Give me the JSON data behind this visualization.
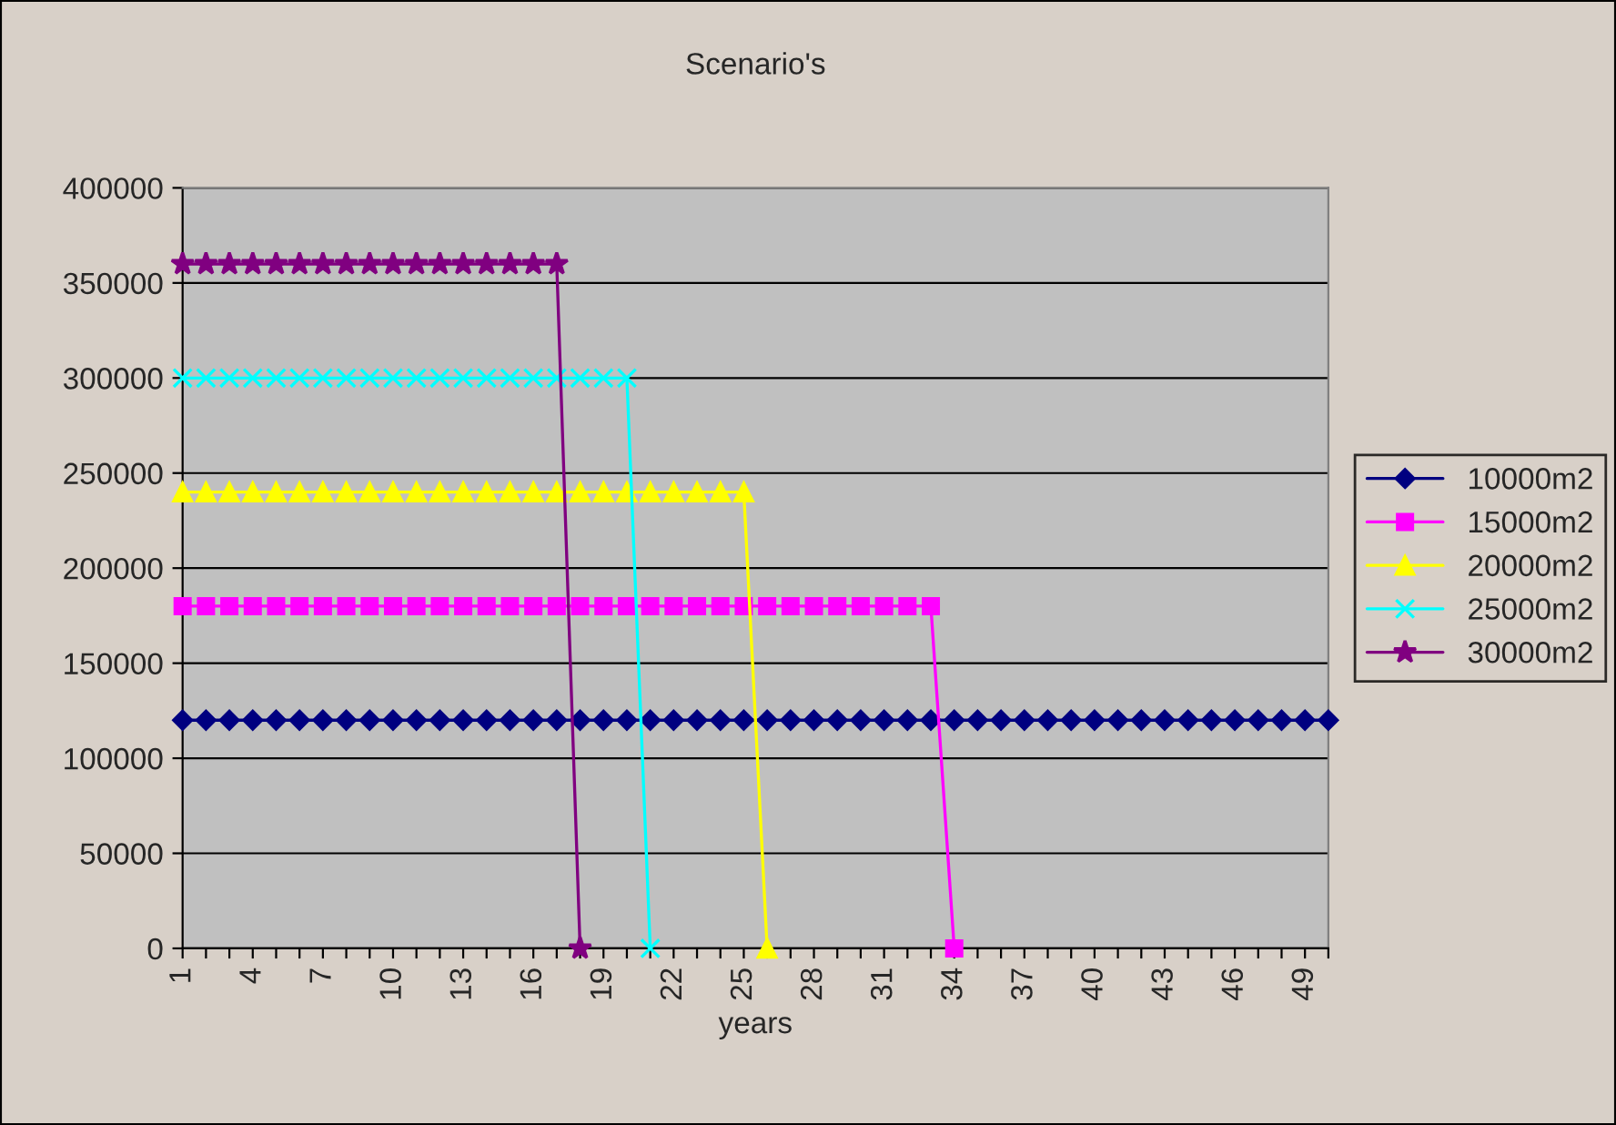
{
  "chart_data": {
    "type": "line",
    "title": "Scenario's",
    "xlabel": "years",
    "categories": [
      "1",
      null,
      null,
      "4",
      null,
      null,
      "7",
      null,
      null,
      "10",
      null,
      null,
      "13",
      null,
      null,
      "16",
      null,
      null,
      "19",
      null,
      null,
      "22",
      null,
      null,
      "25",
      null,
      null,
      "28",
      null,
      null,
      "31",
      null,
      null,
      "34",
      null,
      null,
      "37",
      null,
      null,
      "40",
      null,
      null,
      "43",
      null,
      null,
      "46",
      null,
      null,
      "49",
      null
    ],
    "series": [
      {
        "name": "10000m2",
        "color": "#000080",
        "marker": "diamond",
        "values": [
          120000,
          120000,
          120000,
          120000,
          120000,
          120000,
          120000,
          120000,
          120000,
          120000,
          120000,
          120000,
          120000,
          120000,
          120000,
          120000,
          120000,
          120000,
          120000,
          120000,
          120000,
          120000,
          120000,
          120000,
          120000,
          120000,
          120000,
          120000,
          120000,
          120000,
          120000,
          120000,
          120000,
          120000,
          120000,
          120000,
          120000,
          120000,
          120000,
          120000,
          120000,
          120000,
          120000,
          120000,
          120000,
          120000,
          120000,
          120000,
          120000,
          120000
        ]
      },
      {
        "name": "15000m2",
        "color": "#ff00ff",
        "marker": "square",
        "values": [
          180000,
          180000,
          180000,
          180000,
          180000,
          180000,
          180000,
          180000,
          180000,
          180000,
          180000,
          180000,
          180000,
          180000,
          180000,
          180000,
          180000,
          180000,
          180000,
          180000,
          180000,
          180000,
          180000,
          180000,
          180000,
          180000,
          180000,
          180000,
          180000,
          180000,
          180000,
          180000,
          180000,
          0,
          null,
          null,
          null,
          null,
          null,
          null,
          null,
          null,
          null,
          null,
          null,
          null,
          null,
          null,
          null,
          null
        ]
      },
      {
        "name": "20000m2",
        "color": "#ffff00",
        "marker": "triangle",
        "values": [
          240000,
          240000,
          240000,
          240000,
          240000,
          240000,
          240000,
          240000,
          240000,
          240000,
          240000,
          240000,
          240000,
          240000,
          240000,
          240000,
          240000,
          240000,
          240000,
          240000,
          240000,
          240000,
          240000,
          240000,
          240000,
          0,
          null,
          null,
          null,
          null,
          null,
          null,
          null,
          null,
          null,
          null,
          null,
          null,
          null,
          null,
          null,
          null,
          null,
          null,
          null,
          null,
          null,
          null,
          null,
          null
        ]
      },
      {
        "name": "25000m2",
        "color": "#00ffff",
        "marker": "cross",
        "values": [
          300000,
          300000,
          300000,
          300000,
          300000,
          300000,
          300000,
          300000,
          300000,
          300000,
          300000,
          300000,
          300000,
          300000,
          300000,
          300000,
          300000,
          300000,
          300000,
          300000,
          0,
          null,
          null,
          null,
          null,
          null,
          null,
          null,
          null,
          null,
          null,
          null,
          null,
          null,
          null,
          null,
          null,
          null,
          null,
          null,
          null,
          null,
          null,
          null,
          null,
          null,
          null,
          null,
          null,
          null
        ]
      },
      {
        "name": "30000m2",
        "color": "#800080",
        "marker": "star",
        "values": [
          360000,
          360000,
          360000,
          360000,
          360000,
          360000,
          360000,
          360000,
          360000,
          360000,
          360000,
          360000,
          360000,
          360000,
          360000,
          360000,
          360000,
          0,
          null,
          null,
          null,
          null,
          null,
          null,
          null,
          null,
          null,
          null,
          null,
          null,
          null,
          null,
          null,
          null,
          null,
          null,
          null,
          null,
          null,
          null,
          null,
          null,
          null,
          null,
          null,
          null,
          null,
          null,
          null,
          null
        ]
      }
    ],
    "ylim": [
      0,
      400000
    ],
    "yticks": [
      0,
      50000,
      100000,
      150000,
      200000,
      250000,
      300000,
      350000,
      400000
    ],
    "grid": "y",
    "legend": "right",
    "line_style": "solid"
  }
}
